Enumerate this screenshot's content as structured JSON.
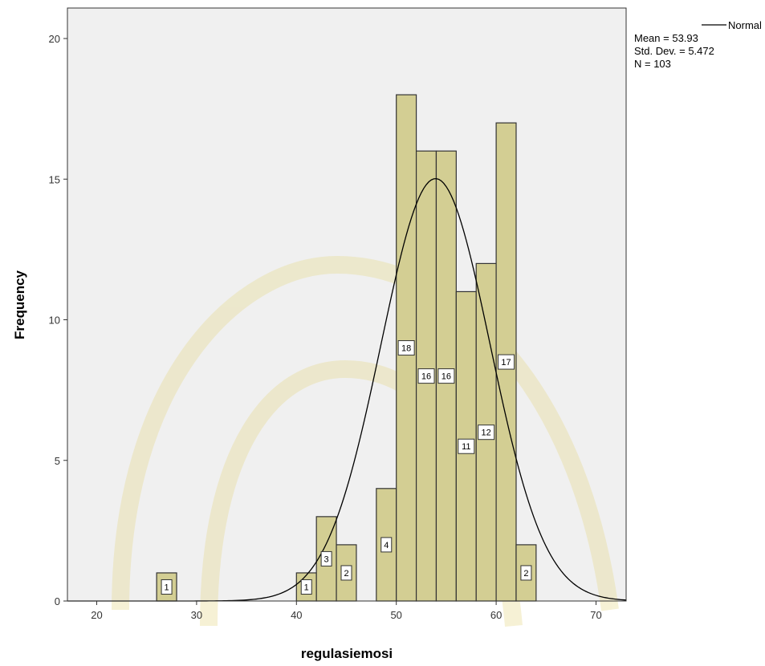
{
  "chart_data": {
    "type": "bar",
    "chart_kind": "histogram",
    "xlabel": "regulasiemosi",
    "ylabel": "Frequency",
    "xlim": [
      17,
      73
    ],
    "ylim": [
      0,
      21
    ],
    "x_ticks": [
      20,
      30,
      40,
      50,
      60,
      70
    ],
    "y_ticks": [
      0,
      5,
      10,
      15,
      20
    ],
    "bin_width": 2,
    "bins": [
      {
        "start": 26,
        "end": 28,
        "count": 1,
        "label": "1"
      },
      {
        "start": 40,
        "end": 42,
        "count": 1,
        "label": "1"
      },
      {
        "start": 42,
        "end": 44,
        "count": 3,
        "label": "3"
      },
      {
        "start": 44,
        "end": 46,
        "count": 2,
        "label": "2"
      },
      {
        "start": 48,
        "end": 50,
        "count": 4,
        "label": "4"
      },
      {
        "start": 50,
        "end": 52,
        "count": 18,
        "label": "18"
      },
      {
        "start": 52,
        "end": 54,
        "count": 16,
        "label": "16"
      },
      {
        "start": 54,
        "end": 56,
        "count": 16,
        "label": "16"
      },
      {
        "start": 56,
        "end": 58,
        "count": 11,
        "label": "11"
      },
      {
        "start": 58,
        "end": 60,
        "count": 12,
        "label": "12"
      },
      {
        "start": 60,
        "end": 62,
        "count": 17,
        "label": "17"
      },
      {
        "start": 62,
        "end": 64,
        "count": 2,
        "label": "2"
      }
    ],
    "curve": {
      "type": "normal",
      "mean": 53.93,
      "std_dev": 5.472,
      "n": 103
    },
    "legend": {
      "position": "top-right",
      "line_label": "Normal",
      "stats": [
        "Mean = 53.93",
        "Std. Dev. = 5.472",
        "N = 103"
      ]
    },
    "grid": false,
    "colors": {
      "plot_background": "#f0f0f0",
      "bar_fill": "#d3ce93",
      "bar_stroke": "#333333",
      "curve": "#000000",
      "watermark": "#e6d98a"
    }
  }
}
